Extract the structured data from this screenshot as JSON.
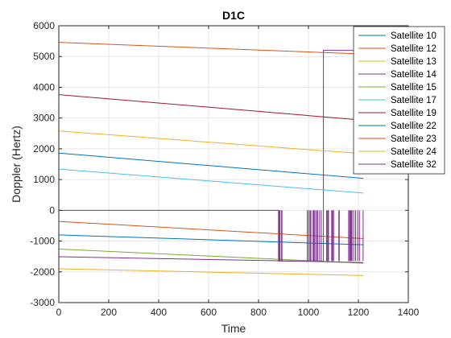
{
  "chart_data": {
    "type": "line",
    "title": "D1C",
    "xlabel": "Time",
    "ylabel": "Doppler (Hertz)",
    "xlim": [
      0,
      1400
    ],
    "ylim": [
      -3000,
      6000
    ],
    "xticks": [
      "0",
      "200",
      "400",
      "600",
      "800",
      "1000",
      "1200",
      "1400"
    ],
    "yticks": [
      "-3000",
      "-2000",
      "-1000",
      "0",
      "1000",
      "2000",
      "3000",
      "4000",
      "5000",
      "6000"
    ],
    "grid": true,
    "legend_position": "top-right",
    "series": [
      {
        "name": "Satellite 10",
        "color": "#0072BD",
        "x": [
          0,
          1220
        ],
        "y": [
          -800,
          -1120
        ]
      },
      {
        "name": "Satellite 12",
        "color": "#D95319",
        "x": [
          0,
          1220
        ],
        "y": [
          5460,
          5080
        ]
      },
      {
        "name": "Satellite 13",
        "color": "#EDB120",
        "x": [
          0,
          1220
        ],
        "y": [
          -1900,
          -2120
        ]
      },
      {
        "name": "Satellite 14",
        "color": "#7E2F8E",
        "x": [
          0,
          880,
          880,
          1060,
          1060,
          1220
        ],
        "y": [
          0,
          0,
          -1650,
          -1650,
          5200,
          5200
        ]
      },
      {
        "name": "Satellite 15",
        "color": "#77AC30",
        "x": [
          0,
          1220
        ],
        "y": [
          -1260,
          -1720
        ]
      },
      {
        "name": "Satellite 17",
        "color": "#4DBEEE",
        "x": [
          0,
          1220
        ],
        "y": [
          1340,
          560
        ]
      },
      {
        "name": "Satellite 19",
        "color": "#A2142F",
        "x": [
          0,
          1220
        ],
        "y": [
          3760,
          2930
        ]
      },
      {
        "name": "Satellite 22",
        "color": "#0072BD",
        "x": [
          0,
          1220
        ],
        "y": [
          1860,
          1040
        ]
      },
      {
        "name": "Satellite 23",
        "color": "#D95319",
        "x": [
          0,
          1220
        ],
        "y": [
          -360,
          -920
        ]
      },
      {
        "name": "Satellite 24",
        "color": "#EDB120",
        "x": [
          0,
          1220
        ],
        "y": [
          2580,
          1840
        ]
      },
      {
        "name": "Satellite 32",
        "color": "#7E2F8E",
        "x": [
          0,
          880,
          1220
        ],
        "y": [
          -1510,
          -1640,
          -1700
        ]
      }
    ]
  }
}
